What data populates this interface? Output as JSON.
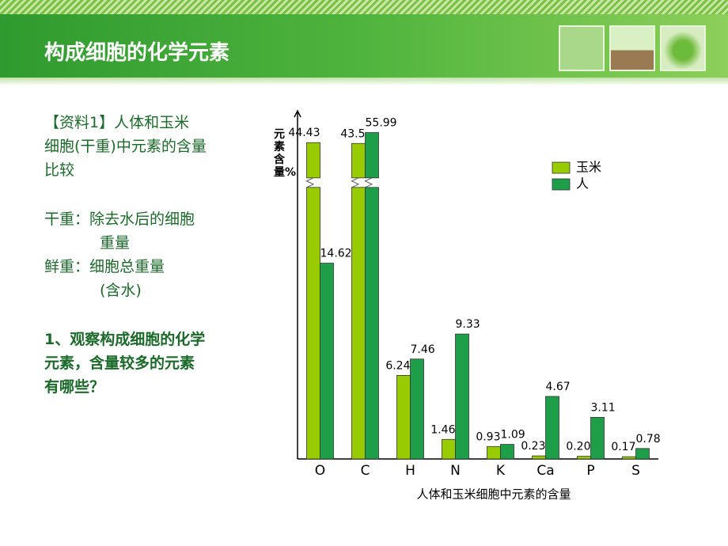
{
  "header": {
    "title": "构成细胞的化学元素"
  },
  "notes": {
    "source": [
      "【资料1】人体和玉米",
      "细胞(干重)中元素的含量",
      "比较"
    ],
    "dry": [
      "干重：除去水后的细胞",
      "重量"
    ],
    "fresh": [
      "鲜重：细胞总重量",
      "(含水)"
    ],
    "question": [
      "1、观察构成细胞的化学",
      "元素，含量较多的元素",
      "有哪些？"
    ]
  },
  "chart_data": {
    "type": "bar",
    "y_label": "元素含量%",
    "x_label": "人体和玉米细胞中元素的含量",
    "categories": [
      "O",
      "C",
      "H",
      "N",
      "K",
      "Ca",
      "P",
      "S"
    ],
    "series": [
      {
        "name": "玉米",
        "color": "#99cc00",
        "values": [
          44.43,
          43.5,
          6.24,
          1.46,
          0.93,
          0.23,
          0.2,
          0.17
        ],
        "value_labels": [
          "44.43",
          "43.5",
          "6.24",
          "1.46",
          "0.93",
          "0.23",
          "0.20",
          "0.17"
        ]
      },
      {
        "name": "人",
        "color": "#1e9e48",
        "values": [
          14.62,
          55.99,
          7.46,
          9.33,
          1.09,
          4.67,
          3.11,
          0.78
        ],
        "value_labels": [
          "14.62",
          "55.99",
          "7.46",
          "9.33",
          "1.09",
          "4.67",
          "3.11",
          "0.78"
        ]
      }
    ],
    "ylim": [
      0,
      26
    ],
    "legend": "top-right"
  }
}
